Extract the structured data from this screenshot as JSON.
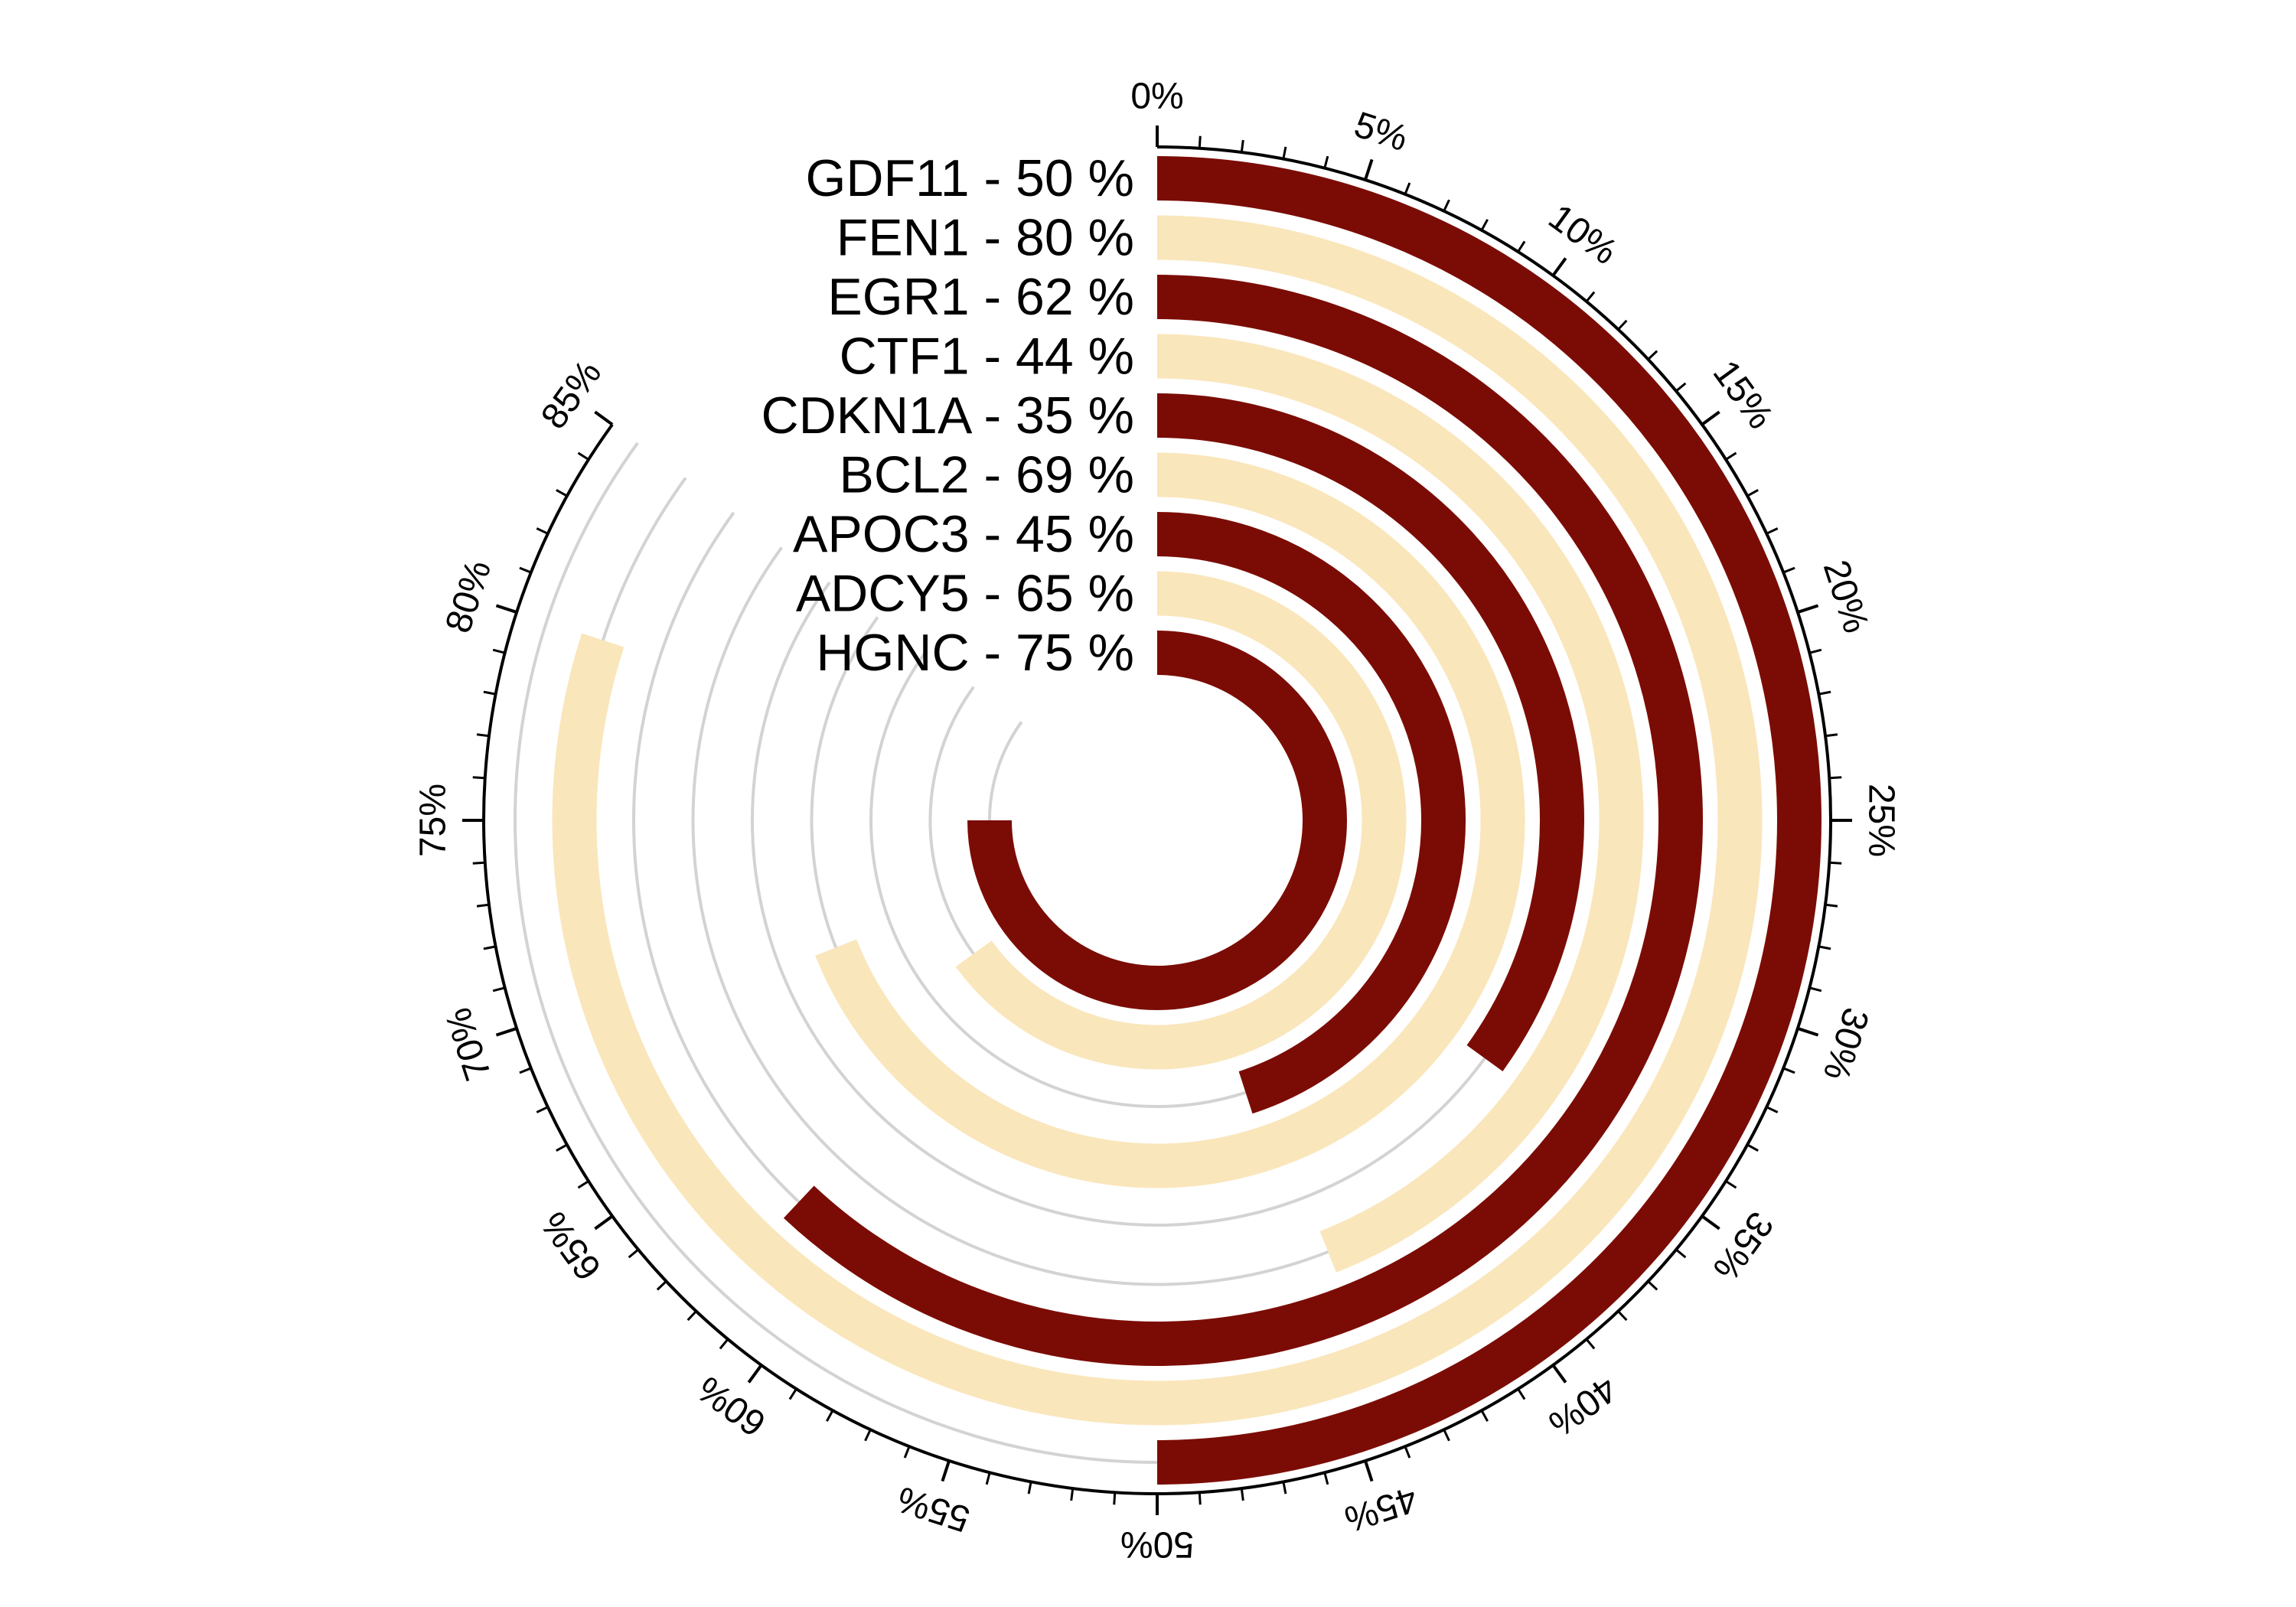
{
  "chart_data": {
    "type": "radial_bar",
    "unit": "%",
    "max_percent": 85,
    "tick_labels": [
      "0%",
      "5%",
      "10%",
      "15%",
      "20%",
      "25%",
      "30%",
      "35%",
      "40%",
      "45%",
      "50%",
      "55%",
      "60%",
      "65%",
      "70%",
      "75%",
      "80%",
      "85%"
    ],
    "bars": [
      {
        "gene": "GDF11",
        "value": 50,
        "label": "GDF11  -  50 %",
        "color": "#7b0c05"
      },
      {
        "gene": "FEN1",
        "value": 80,
        "label": "FEN1  -  80 %",
        "color": "#fae6bb"
      },
      {
        "gene": "EGR1",
        "value": 62,
        "label": "EGR1  -  62 %",
        "color": "#7b0c05"
      },
      {
        "gene": "CTF1",
        "value": 44,
        "label": "CTF1  -  44 %",
        "color": "#fae6bb"
      },
      {
        "gene": "CDKN1A",
        "value": 35,
        "label": "CDKN1A  -  35 %",
        "color": "#7b0c05"
      },
      {
        "gene": "BCL2",
        "value": 69,
        "label": "BCL2  -  69 %",
        "color": "#fae6bb"
      },
      {
        "gene": "APOC3",
        "value": 45,
        "label": "APOC3  -  45 %",
        "color": "#7b0c05"
      },
      {
        "gene": "ADCY5",
        "value": 65,
        "label": "ADCY5  -  65 %",
        "color": "#fae6bb"
      },
      {
        "gene": "HGNC",
        "value": 75,
        "label": "HGNC  -  75 %",
        "color": "#7b0c05"
      }
    ],
    "colors": {
      "dark": "#7b0c05",
      "light": "#fae6bb",
      "track": "#d3d3d3",
      "axis": "#000000"
    }
  }
}
